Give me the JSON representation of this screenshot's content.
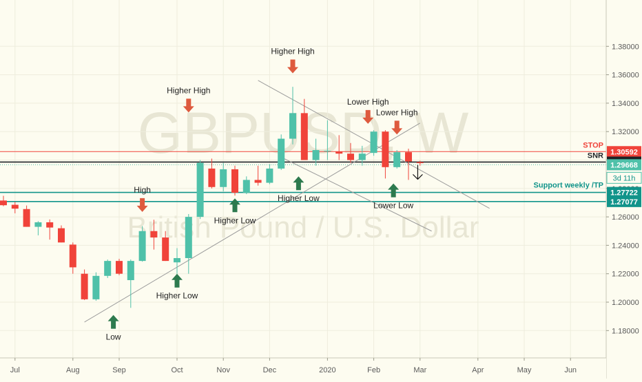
{
  "chart_data": {
    "type": "candlestick",
    "watermark": {
      "symbol": "GBPUSD, W",
      "description": "British Pound / U.S. Dollar"
    },
    "colors": {
      "background": "#fdfcf0",
      "up": "#4fc1a9",
      "down": "#f0433a",
      "grid": "#eeeddd",
      "stop": "#f0433a",
      "snr": "#1e2226",
      "support": "#11948a",
      "current": "#4fc1a9",
      "trendline": "#9b9b9b",
      "arrow_up": "#2d7a4e",
      "arrow_down": "#de5a3e",
      "axis_text": "#5a5a5a",
      "annotation_text": "#222222"
    },
    "y_axis": {
      "min": 1.16,
      "max": 1.39,
      "ticks": [
        "1.38000",
        "1.36000",
        "1.34000",
        "1.32000",
        "1.30000",
        "1.28000",
        "1.26000",
        "1.24000",
        "1.22000",
        "1.20000",
        "1.18000"
      ]
    },
    "x_axis": {
      "labels": [
        {
          "label": "Jul",
          "week": 1
        },
        {
          "label": "Aug",
          "week": 6
        },
        {
          "label": "Sep",
          "week": 10
        },
        {
          "label": "Oct",
          "week": 15
        },
        {
          "label": "Nov",
          "week": 19
        },
        {
          "label": "Dec",
          "week": 23
        },
        {
          "label": "2020",
          "week": 28
        },
        {
          "label": "Feb",
          "week": 32
        },
        {
          "label": "Mar",
          "week": 36
        },
        {
          "label": "Apr",
          "week": 41
        },
        {
          "label": "May",
          "week": 45
        },
        {
          "label": "Jun",
          "week": 49
        }
      ]
    },
    "candles": [
      {
        "o": 1.2715,
        "h": 1.2748,
        "l": 1.2675,
        "c": 1.2682
      },
      {
        "o": 1.2685,
        "h": 1.2705,
        "l": 1.2625,
        "c": 1.2658
      },
      {
        "o": 1.2655,
        "h": 1.268,
        "l": 1.253,
        "c": 1.253
      },
      {
        "o": 1.253,
        "h": 1.257,
        "l": 1.247,
        "c": 1.2562
      },
      {
        "o": 1.2562,
        "h": 1.2582,
        "l": 1.244,
        "c": 1.2525
      },
      {
        "o": 1.252,
        "h": 1.254,
        "l": 1.242,
        "c": 1.242
      },
      {
        "o": 1.2405,
        "h": 1.242,
        "l": 1.22,
        "c": 1.2245
      },
      {
        "o": 1.22,
        "h": 1.223,
        "l": 1.2015,
        "c": 1.202
      },
      {
        "o": 1.202,
        "h": 1.221,
        "l": 1.201,
        "c": 1.2185
      },
      {
        "o": 1.2185,
        "h": 1.23,
        "l": 1.217,
        "c": 1.229
      },
      {
        "o": 1.229,
        "h": 1.2305,
        "l": 1.219,
        "c": 1.22
      },
      {
        "o": 1.2155,
        "h": 1.23,
        "l": 1.196,
        "c": 1.229
      },
      {
        "o": 1.229,
        "h": 1.2535,
        "l": 1.2285,
        "c": 1.25
      },
      {
        "o": 1.25,
        "h": 1.258,
        "l": 1.237,
        "c": 1.2455
      },
      {
        "o": 1.2455,
        "h": 1.25,
        "l": 1.229,
        "c": 1.229
      },
      {
        "o": 1.228,
        "h": 1.238,
        "l": 1.22,
        "c": 1.231
      },
      {
        "o": 1.231,
        "h": 1.262,
        "l": 1.22,
        "c": 1.26
      },
      {
        "o": 1.26,
        "h": 1.3,
        "l": 1.2585,
        "c": 1.298
      },
      {
        "o": 1.294,
        "h": 1.301,
        "l": 1.28,
        "c": 1.281
      },
      {
        "o": 1.281,
        "h": 1.298,
        "l": 1.278,
        "c": 1.2935
      },
      {
        "o": 1.2935,
        "h": 1.296,
        "l": 1.275,
        "c": 1.277
      },
      {
        "o": 1.277,
        "h": 1.2885,
        "l": 1.276,
        "c": 1.286
      },
      {
        "o": 1.286,
        "h": 1.296,
        "l": 1.282,
        "c": 1.284
      },
      {
        "o": 1.284,
        "h": 1.297,
        "l": 1.283,
        "c": 1.294
      },
      {
        "o": 1.294,
        "h": 1.318,
        "l": 1.293,
        "c": 1.315
      },
      {
        "o": 1.315,
        "h": 1.3515,
        "l": 1.311,
        "c": 1.333
      },
      {
        "o": 1.333,
        "h": 1.343,
        "l": 1.3,
        "c": 1.3
      },
      {
        "o": 1.3,
        "h": 1.315,
        "l": 1.296,
        "c": 1.307
      },
      {
        "o": 1.306,
        "h": 1.328,
        "l": 1.3,
        "c": 1.3065
      },
      {
        "o": 1.306,
        "h": 1.3175,
        "l": 1.3,
        "c": 1.3045
      },
      {
        "o": 1.3045,
        "h": 1.312,
        "l": 1.298,
        "c": 1.3
      },
      {
        "o": 1.3,
        "h": 1.31,
        "l": 1.296,
        "c": 1.3045
      },
      {
        "o": 1.305,
        "h": 1.321,
        "l": 1.303,
        "c": 1.32
      },
      {
        "o": 1.32,
        "h": 1.321,
        "l": 1.287,
        "c": 1.295
      },
      {
        "o": 1.295,
        "h": 1.307,
        "l": 1.294,
        "c": 1.3055
      },
      {
        "o": 1.3055,
        "h": 1.308,
        "l": 1.286,
        "c": 1.299
      },
      {
        "o": 1.2985,
        "h": 1.2995,
        "l": 1.296,
        "c": 1.2978
      }
    ],
    "price_lines": [
      {
        "name": "STOP",
        "value": 1.30592,
        "price_label": "1.30592",
        "color": "#f0433a"
      },
      {
        "name": "SNR",
        "value": 1.29856,
        "price_label": "1.29856",
        "color": "#1e2226"
      },
      {
        "name": "current",
        "value": 1.29668,
        "price_label": "1.29668",
        "color": "#4fc1a9"
      },
      {
        "name": "Support weekly /TP",
        "value": 1.27722,
        "price_label": "1.27722",
        "color": "#11948a"
      },
      {
        "name": "support-lower",
        "value": 1.27077,
        "price_label": "1.27077",
        "color": "#11948a"
      }
    ],
    "countdown_label": "3d 11h",
    "line_labels": {
      "stop": "STOP",
      "snr": "SNR",
      "support": "Support weekly /TP"
    },
    "trendlines": [
      {
        "from": {
          "week": 7,
          "price": 1.186
        },
        "to": {
          "week": 36,
          "price": 1.326
        }
      },
      {
        "from": {
          "week": 22,
          "price": 1.356
        },
        "to": {
          "week": 42,
          "price": 1.266
        }
      },
      {
        "from": {
          "week": 24,
          "price": 1.302
        },
        "to": {
          "week": 37,
          "price": 1.25
        }
      }
    ],
    "annotations": [
      {
        "text": "Higher High",
        "week": 16,
        "price": 1.3335,
        "arrow": "down"
      },
      {
        "text": "High",
        "week": 12,
        "price": 1.2635,
        "arrow": "down"
      },
      {
        "text": "Low",
        "week": 9.5,
        "price": 1.191,
        "arrow": "up"
      },
      {
        "text": "Higher Low",
        "week": 15,
        "price": 1.22,
        "arrow": "up"
      },
      {
        "text": "Higher Low",
        "week": 20,
        "price": 1.273,
        "arrow": "up"
      },
      {
        "text": "Higher High",
        "week": 25,
        "price": 1.361,
        "arrow": "down"
      },
      {
        "text": "Higher Low",
        "week": 25.5,
        "price": 1.2885,
        "arrow": "up"
      },
      {
        "text": "Lower High",
        "week": 31.5,
        "price": 1.3255,
        "arrow": "down"
      },
      {
        "text": "Lower High",
        "week": 34,
        "price": 1.318,
        "arrow": "down"
      },
      {
        "text": "Lower Low",
        "week": 33.7,
        "price": 1.2835,
        "arrow": "up"
      }
    ],
    "projection_arrow": {
      "week": 35.8,
      "from": 1.2965,
      "to": 1.2865
    }
  }
}
